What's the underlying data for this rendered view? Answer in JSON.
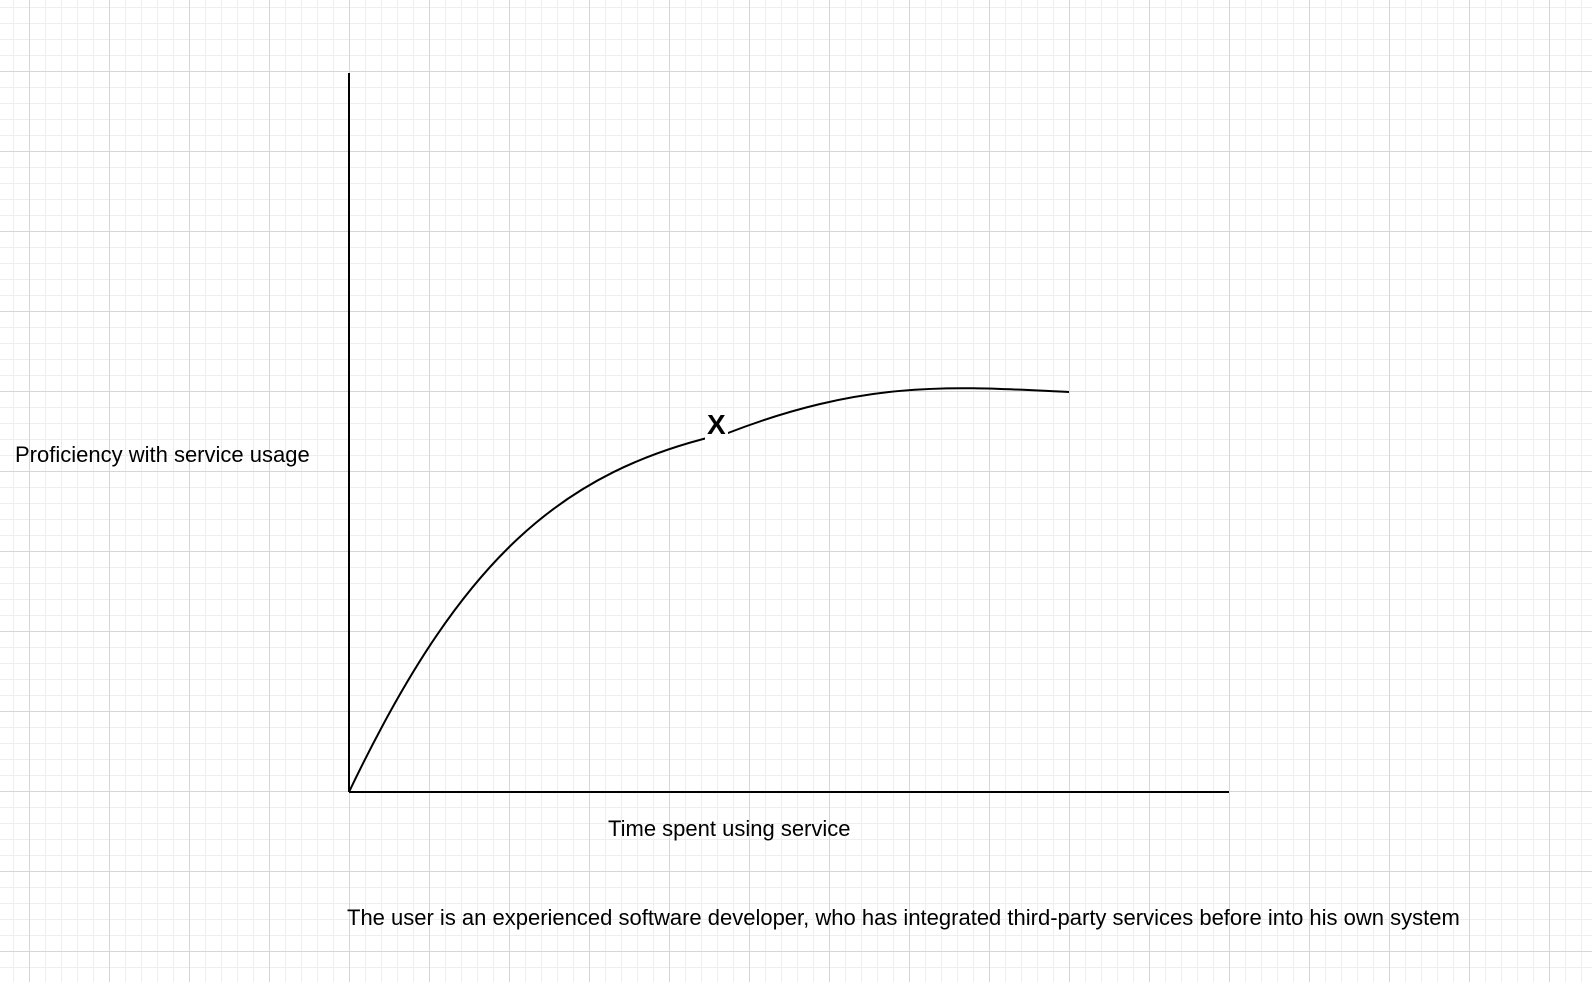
{
  "diagram": {
    "type": "learning-curve-sketch",
    "y_axis_label": "Proficiency with service usage",
    "x_axis_label": "Time spent using service",
    "marker_label": "X",
    "caption": "The user is an experienced software developer, who has integrated third-party services before into his own system",
    "curve_shape": "concave-rising-then-plateau",
    "background": "grid",
    "colors": {
      "line": "#000000",
      "grid_major": "#d6d6d6",
      "grid_minor": "#eeeeee",
      "background": "#ffffff"
    }
  }
}
